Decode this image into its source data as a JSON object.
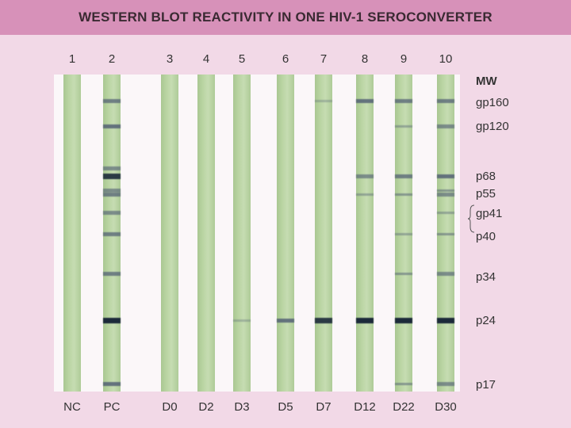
{
  "title": "WESTERN BLOT REACTIVITY IN ONE HIV-1 SEROCONVERTER",
  "colors": {
    "header_bg": "#d791b9",
    "page_bg": "#f2d9e7",
    "strip": "#b9d4a2",
    "band_dark": "#1c2a3a",
    "band_mid": "#4d5a72"
  },
  "lanes": [
    {
      "num": "1",
      "label": "NC",
      "bands": []
    },
    {
      "num": "2",
      "label": "PC",
      "bands": [
        {
          "mw": "gp160",
          "i": 0.7
        },
        {
          "mw": "gp120",
          "i": 0.8
        },
        {
          "mw": "p68",
          "i": 0.9
        },
        {
          "mw": "p55",
          "i": 0.7
        },
        {
          "mw": "p51",
          "i": 0.6
        },
        {
          "mw": "gp41",
          "i": 0.6
        },
        {
          "mw": "p40",
          "i": 0.7
        },
        {
          "mw": "p34",
          "i": 0.7
        },
        {
          "mw": "p24",
          "i": 1.0
        },
        {
          "mw": "p17",
          "i": 0.8
        },
        {
          "mw": "p63",
          "i": 0.6
        }
      ]
    },
    {
      "num": "3",
      "label": "D0",
      "bands": []
    },
    {
      "num": "4",
      "label": "D2",
      "bands": []
    },
    {
      "num": "5",
      "label": "D3",
      "bands": [
        {
          "mw": "p24",
          "i": 0.3
        }
      ]
    },
    {
      "num": "6",
      "label": "D5",
      "bands": [
        {
          "mw": "p24",
          "i": 0.8
        }
      ]
    },
    {
      "num": "7",
      "label": "D7",
      "bands": [
        {
          "mw": "gp160",
          "i": 0.3
        },
        {
          "mw": "p24",
          "i": 0.9
        }
      ]
    },
    {
      "num": "8",
      "label": "D12",
      "bands": [
        {
          "mw": "gp160",
          "i": 0.8
        },
        {
          "mw": "p68",
          "i": 0.6
        },
        {
          "mw": "p55",
          "i": 0.4
        },
        {
          "mw": "p24",
          "i": 1.0
        }
      ]
    },
    {
      "num": "9",
      "label": "D22",
      "bands": [
        {
          "mw": "gp160",
          "i": 0.7
        },
        {
          "mw": "gp120",
          "i": 0.4
        },
        {
          "mw": "p68",
          "i": 0.7
        },
        {
          "mw": "p55",
          "i": 0.5
        },
        {
          "mw": "p40",
          "i": 0.4
        },
        {
          "mw": "p34",
          "i": 0.5
        },
        {
          "mw": "p24",
          "i": 1.0
        },
        {
          "mw": "p17",
          "i": 0.5
        }
      ]
    },
    {
      "num": "10",
      "label": "D30",
      "bands": [
        {
          "mw": "gp160",
          "i": 0.7
        },
        {
          "mw": "gp120",
          "i": 0.6
        },
        {
          "mw": "p68",
          "i": 0.8
        },
        {
          "mw": "p55",
          "i": 0.6
        },
        {
          "mw": "p51",
          "i": 0.5
        },
        {
          "mw": "gp41",
          "i": 0.4
        },
        {
          "mw": "p40",
          "i": 0.5
        },
        {
          "mw": "p34",
          "i": 0.6
        },
        {
          "mw": "p24",
          "i": 1.0
        },
        {
          "mw": "p17",
          "i": 0.6
        }
      ]
    }
  ],
  "mw_title": "MW",
  "mw_markers": [
    "gp160",
    "gp120",
    "p68",
    "p55",
    "gp41",
    "p40",
    "p34",
    "p24",
    "p17"
  ]
}
